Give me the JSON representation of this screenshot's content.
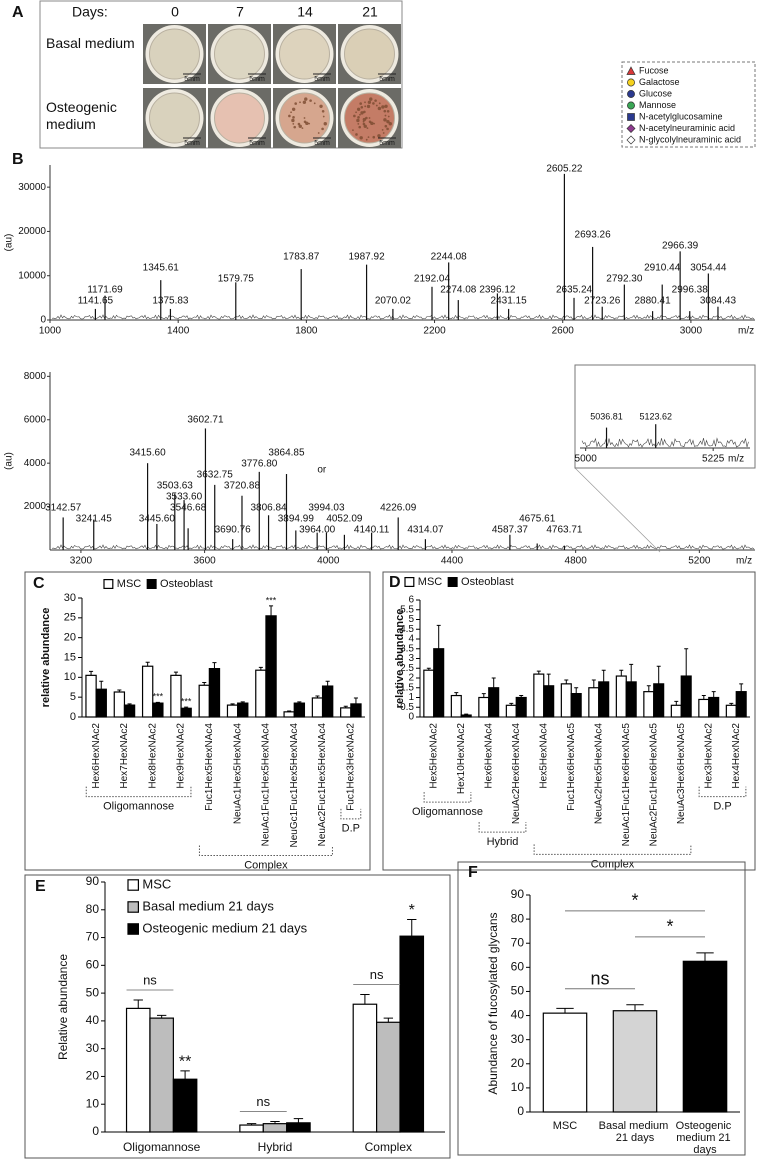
{
  "panel_a": {
    "panel": "A",
    "days_label": "Days:",
    "days": [
      0,
      7,
      14,
      21
    ],
    "rows": [
      "Basal medium",
      "Osteogenic medium"
    ],
    "scale_bar": "5mm"
  },
  "monosaccharide_legend": [
    {
      "name": "Fucose",
      "shape": "triangle",
      "color": "#d9383a"
    },
    {
      "name": "Galactose",
      "shape": "circle",
      "color": "#f5d21f"
    },
    {
      "name": "Glucose",
      "shape": "circle",
      "color": "#2b3a8f"
    },
    {
      "name": "Mannose",
      "shape": "circle",
      "color": "#3aa655"
    },
    {
      "name": "N-acetylglucosamine",
      "shape": "square",
      "color": "#2b3a8f"
    },
    {
      "name": "N-acetylneuraminic acid",
      "shape": "diamond",
      "color": "#8e3a8e"
    },
    {
      "name": "N-glycolylneuraminic acid",
      "shape": "diamond",
      "color": "#ffffff"
    }
  ],
  "chart_data": [
    {
      "type": "spectrum",
      "panel": "B",
      "ylabel": "(au)",
      "xlabel": "m/z",
      "xlim": [
        1000,
        3200
      ],
      "xticks": [
        1000,
        1400,
        1800,
        2200,
        2600,
        3000
      ],
      "ylim": [
        0,
        35000
      ],
      "yticks": [
        0,
        10000,
        20000,
        30000
      ],
      "x": [
        1141.65,
        1171.69,
        1345.61,
        1375.83,
        1579.75,
        1783.87,
        1987.92,
        2070.02,
        2192.04,
        2244.08,
        2274.08,
        2396.12,
        2431.15,
        2605.22,
        2635.24,
        2693.26,
        2723.26,
        2792.3,
        2880.41,
        2910.44,
        2966.39,
        2996.38,
        3054.44,
        3084.43
      ],
      "x_labels": [
        "1141.65",
        "1171.69",
        "1345.61",
        "1375.83",
        "1579.75",
        "1783.87",
        "1987.92",
        "2070.02",
        "2192.04",
        "2244.08",
        "2274.08",
        "2396.12",
        "2431.15",
        "2605.22",
        "2635.24",
        "2693.26",
        "2723.26",
        "2792.30",
        "2880.41",
        "2910.44",
        "2966.39",
        "2996.38",
        "3054.44",
        "3084.43"
      ],
      "values": [
        2500,
        5500,
        9000,
        2500,
        8500,
        11500,
        12500,
        2500,
        7500,
        13000,
        4500,
        6000,
        2500,
        33000,
        5000,
        16500,
        3000,
        8000,
        2000,
        8000,
        15500,
        2000,
        10500,
        3000
      ]
    },
    {
      "type": "spectrum",
      "ylabel": "(au)",
      "xlabel": "m/z",
      "annotation": "or",
      "xlim": [
        3100,
        5380
      ],
      "xticks": [
        3200,
        3600,
        4000,
        4400,
        4800,
        5200
      ],
      "ylim": [
        0,
        8200
      ],
      "yticks": [
        2000,
        4000,
        6000,
        8000
      ],
      "x": [
        3142.57,
        3241.45,
        3415.6,
        3445.6,
        3503.63,
        3533.6,
        3546.68,
        3602.71,
        3632.75,
        3690.76,
        3720.88,
        3776.8,
        3806.84,
        3864.85,
        3894.99,
        3964.0,
        3994.03,
        4052.09,
        4140.11,
        4226.09,
        4314.07,
        4587.37,
        4675.61,
        4763.71
      ],
      "x_labels": [
        "3142.57",
        "3241.45",
        "3415.60",
        "3445.60",
        "3503.63",
        "3533.60",
        "3546.68",
        "3602.71",
        "3632.75",
        "3690.76",
        "3720.88",
        "3776.80",
        "3806.84",
        "3864.85",
        "3894.99",
        "3964.00",
        "3994.03",
        "4052.09",
        "4140.11",
        "4226.09",
        "4314.07",
        "4587.37",
        "4675.61",
        "4763.71"
      ],
      "values": [
        1500,
        1400,
        4000,
        1200,
        2600,
        2300,
        1000,
        5600,
        3000,
        500,
        2500,
        3600,
        1600,
        3500,
        900,
        800,
        800,
        700,
        800,
        1500,
        500,
        700,
        300,
        200
      ]
    },
    {
      "type": "spectrum",
      "xlabel": "m/z",
      "xlim": [
        4990,
        5290
      ],
      "xticks": [
        5000,
        5225
      ],
      "ylim": [
        0,
        100
      ],
      "x": [
        5036.81,
        5123.62
      ],
      "x_labels": [
        "5036.81",
        "5123.62"
      ],
      "values": [
        30,
        35
      ]
    },
    {
      "type": "bar",
      "panel": "C",
      "ylabel": "relative abundance",
      "ylim": [
        0,
        30
      ],
      "yticks": [
        0,
        5,
        10,
        15,
        20,
        25,
        30
      ],
      "categories": [
        "Hex6HexNAc2",
        "Hex7HexNAc2",
        "Hex8HexNAc2",
        "Hex9HexNAc2",
        "Fuc1Hex5HexNAc4",
        "NeuAc1Hex5HexNAc4",
        "NeuAc1Fuc1Hex5HexNAc4",
        "NeuGc1Fuc1Hex5HexNAc4",
        "NeuAc2Fuc1Hex5HexNAc4",
        "Fuc1Hex3HexNAc2"
      ],
      "series": [
        {
          "name": "MSC",
          "color": "#ffffff",
          "values": [
            10.5,
            6.3,
            12.8,
            10.5,
            8,
            3,
            11.8,
            1.3,
            4.8,
            2.3
          ],
          "errors": [
            1,
            0.5,
            1,
            0.8,
            0.7,
            0.3,
            0.7,
            0.2,
            0.5,
            0.4
          ]
        },
        {
          "name": "Osteoblast",
          "color": "#000000",
          "values": [
            7,
            3,
            3.5,
            2.2,
            12.2,
            3.5,
            25.5,
            3.5,
            7.8,
            3.3
          ],
          "errors": [
            2,
            0.3,
            0.2,
            0.3,
            1.5,
            0.3,
            2.5,
            0.3,
            1.2,
            1.5
          ],
          "significance": [
            null,
            null,
            "***",
            "***",
            null,
            null,
            "***",
            null,
            null,
            null
          ]
        }
      ],
      "groups": [
        {
          "label": "Oligomannose",
          "from": 0,
          "to": 3
        },
        {
          "label": "Complex",
          "from": 4,
          "to": 8
        },
        {
          "label": "D.P",
          "from": 9,
          "to": 9
        }
      ]
    },
    {
      "type": "bar",
      "panel": "D",
      "ylabel": "relative abundance",
      "ylim": [
        0,
        6
      ],
      "yticks": [
        0,
        0.5,
        1,
        1.5,
        2,
        2.5,
        3,
        3.5,
        4,
        4.5,
        5,
        5.5,
        6
      ],
      "categories": [
        "Hex5HexNAc2",
        "Hex10HexNAc2",
        "Hex6HexNAc4",
        "NeuAc2Hex6HexNAc4",
        "Hex5HexNAc4",
        "Fuc1Hex6HexNAc5",
        "NeuAc2Hex5HexNAc4",
        "NeuAc1Fuc1Hex6HexNAc5",
        "NeuAc2Fuc1Hex6HexNAc5",
        "NeuAc3Hex6HexNAc5",
        "Hex3HexNAc2",
        "Hex4HexNAc2"
      ],
      "series": [
        {
          "name": "MSC",
          "color": "#ffffff",
          "values": [
            2.4,
            1.1,
            1.0,
            0.6,
            2.2,
            1.7,
            1.5,
            2.1,
            1.3,
            0.6,
            0.9,
            0.6
          ],
          "errors": [
            0.1,
            0.15,
            0.2,
            0.1,
            0.15,
            0.2,
            0.4,
            0.3,
            0.3,
            0.2,
            0.2,
            0.1
          ]
        },
        {
          "name": "Osteoblast",
          "color": "#000000",
          "values": [
            3.5,
            0.1,
            1.5,
            1.0,
            1.6,
            1.2,
            1.8,
            1.8,
            1.7,
            2.1,
            1.0,
            1.3
          ],
          "errors": [
            1.2,
            0.05,
            0.5,
            0.1,
            0.6,
            0.3,
            0.6,
            0.9,
            0.9,
            1.4,
            0.3,
            0.4
          ]
        }
      ],
      "groups": [
        {
          "label": "Oligomannose",
          "from": 0,
          "to": 1
        },
        {
          "label": "Hybrid",
          "from": 2,
          "to": 3
        },
        {
          "label": "Complex",
          "from": 4,
          "to": 9
        },
        {
          "label": "D.P",
          "from": 10,
          "to": 11
        }
      ]
    },
    {
      "type": "bar",
      "panel": "E",
      "ylabel": "Relative abundance",
      "ylim": [
        0,
        90
      ],
      "yticks": [
        0,
        10,
        20,
        30,
        40,
        50,
        60,
        70,
        80,
        90
      ],
      "categories": [
        "Oligomannose",
        "Hybrid",
        "Complex"
      ],
      "series": [
        {
          "name": "MSC",
          "color": "#ffffff",
          "values": [
            44.5,
            2.5,
            46
          ],
          "errors": [
            3,
            0.5,
            3.5
          ]
        },
        {
          "name": "Basal medium  21 days",
          "color": "#bdbdbd",
          "values": [
            41,
            3,
            39.5
          ],
          "errors": [
            1,
            0.8,
            1.5
          ]
        },
        {
          "name": "Osteogenic medium  21 days",
          "color": "#000000",
          "values": [
            19,
            3.3,
            70.5
          ],
          "errors": [
            3,
            1.5,
            6
          ],
          "significance": [
            "**",
            null,
            "*"
          ]
        }
      ],
      "group_annotations": [
        "ns",
        "ns",
        "ns"
      ]
    },
    {
      "type": "bar",
      "panel": "F",
      "ylabel": "Abundance of fucosylated glycans",
      "ylim": [
        0,
        90
      ],
      "yticks": [
        0,
        10,
        20,
        30,
        40,
        50,
        60,
        70,
        80,
        90
      ],
      "categories": [
        "MSC",
        "Basal medium 21 days",
        "Osteogenic medium 21 days"
      ],
      "values": [
        41,
        42,
        62.5
      ],
      "errors": [
        2,
        2.5,
        3.5
      ],
      "colors": [
        "#ffffff",
        "#d4d4d4",
        "#000000"
      ],
      "comparisons": [
        {
          "from": 0,
          "to": 1,
          "label": "ns"
        },
        {
          "from": 1,
          "to": 2,
          "label": "*"
        },
        {
          "from": 0,
          "to": 2,
          "label": "*"
        }
      ]
    }
  ]
}
